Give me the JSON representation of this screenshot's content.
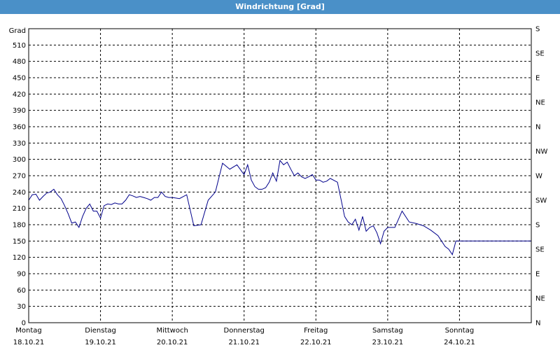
{
  "window": {
    "title": "Windrichtung [Grad]"
  },
  "chart_data": {
    "type": "line",
    "title": "Windrichtung [Grad]",
    "ylabel": "Grad",
    "ylim": [
      0,
      540
    ],
    "yticks": [
      0,
      30,
      60,
      90,
      120,
      150,
      180,
      210,
      240,
      270,
      300,
      330,
      360,
      390,
      420,
      450,
      480,
      510
    ],
    "right_axis_labels": [
      "N",
      "NE",
      "E",
      "SE",
      "S",
      "SW",
      "W",
      "NW",
      "N",
      "NE",
      "E",
      "SE",
      "S"
    ],
    "grid": true,
    "x_days": [
      {
        "day": "Montag",
        "date": "18.10.21"
      },
      {
        "day": "Dienstag",
        "date": "19.10.21"
      },
      {
        "day": "Mittwoch",
        "date": "20.10.21"
      },
      {
        "day": "Donnerstag",
        "date": "21.10.21"
      },
      {
        "day": "Freitag",
        "date": "22.10.21"
      },
      {
        "day": "Samstag",
        "date": "23.10.21"
      },
      {
        "day": "Sonntag",
        "date": "24.10.21"
      }
    ],
    "xlim_days": [
      0,
      7
    ],
    "series": [
      {
        "color": "#00008b",
        "x": [
          0.0,
          0.05,
          0.1,
          0.15,
          0.2,
          0.25,
          0.3,
          0.35,
          0.4,
          0.45,
          0.5,
          0.55,
          0.6,
          0.65,
          0.7,
          0.75,
          0.8,
          0.85,
          0.9,
          0.95,
          1.0,
          1.05,
          1.1,
          1.15,
          1.2,
          1.25,
          1.3,
          1.35,
          1.4,
          1.45,
          1.5,
          1.55,
          1.6,
          1.65,
          1.7,
          1.75,
          1.8,
          1.85,
          1.9,
          1.95,
          2.0,
          2.1,
          2.2,
          2.3,
          2.4,
          2.5,
          2.6,
          2.7,
          2.8,
          2.9,
          3.0,
          3.05,
          3.1,
          3.15,
          3.2,
          3.25,
          3.3,
          3.35,
          3.4,
          3.45,
          3.5,
          3.55,
          3.6,
          3.65,
          3.7,
          3.75,
          3.8,
          3.85,
          3.9,
          3.95,
          4.0,
          4.05,
          4.1,
          4.15,
          4.2,
          4.3,
          4.4,
          4.45,
          4.5,
          4.55,
          4.6,
          4.65,
          4.7,
          4.75,
          4.8,
          4.85,
          4.9,
          4.95,
          5.0,
          5.1,
          5.2,
          5.3,
          5.4,
          5.5,
          5.6,
          5.7,
          5.8,
          5.85,
          5.9,
          5.95,
          6.0,
          6.05,
          6.1,
          6.15,
          6.2,
          6.25,
          6.3,
          6.35,
          6.4,
          6.45,
          6.5,
          6.55,
          6.6,
          6.65,
          6.7,
          6.75,
          6.8,
          6.85,
          6.9,
          6.95,
          7.0
        ],
        "y": [
          225,
          235,
          236,
          225,
          232,
          238,
          240,
          245,
          235,
          228,
          215,
          200,
          183,
          185,
          175,
          195,
          210,
          218,
          205,
          205,
          192,
          215,
          218,
          217,
          220,
          218,
          218,
          225,
          235,
          233,
          230,
          232,
          230,
          228,
          225,
          230,
          230,
          240,
          232,
          230,
          230,
          228,
          235,
          178,
          180,
          225,
          240,
          293,
          282,
          290,
          272,
          290,
          262,
          250,
          245,
          245,
          248,
          258,
          275,
          260,
          298,
          290,
          295,
          282,
          270,
          275,
          268,
          265,
          268,
          272,
          262,
          262,
          258,
          260,
          265,
          258,
          195,
          185,
          180,
          190,
          170,
          195,
          168,
          175,
          178,
          165,
          145,
          168,
          175,
          175,
          205,
          185,
          182,
          178,
          170,
          160,
          140,
          135,
          125,
          150,
          150,
          150,
          150,
          150,
          150,
          150,
          150,
          150,
          150,
          150,
          150,
          150,
          150,
          150,
          150,
          150,
          150,
          150,
          150,
          150,
          150
        ]
      }
    ]
  }
}
